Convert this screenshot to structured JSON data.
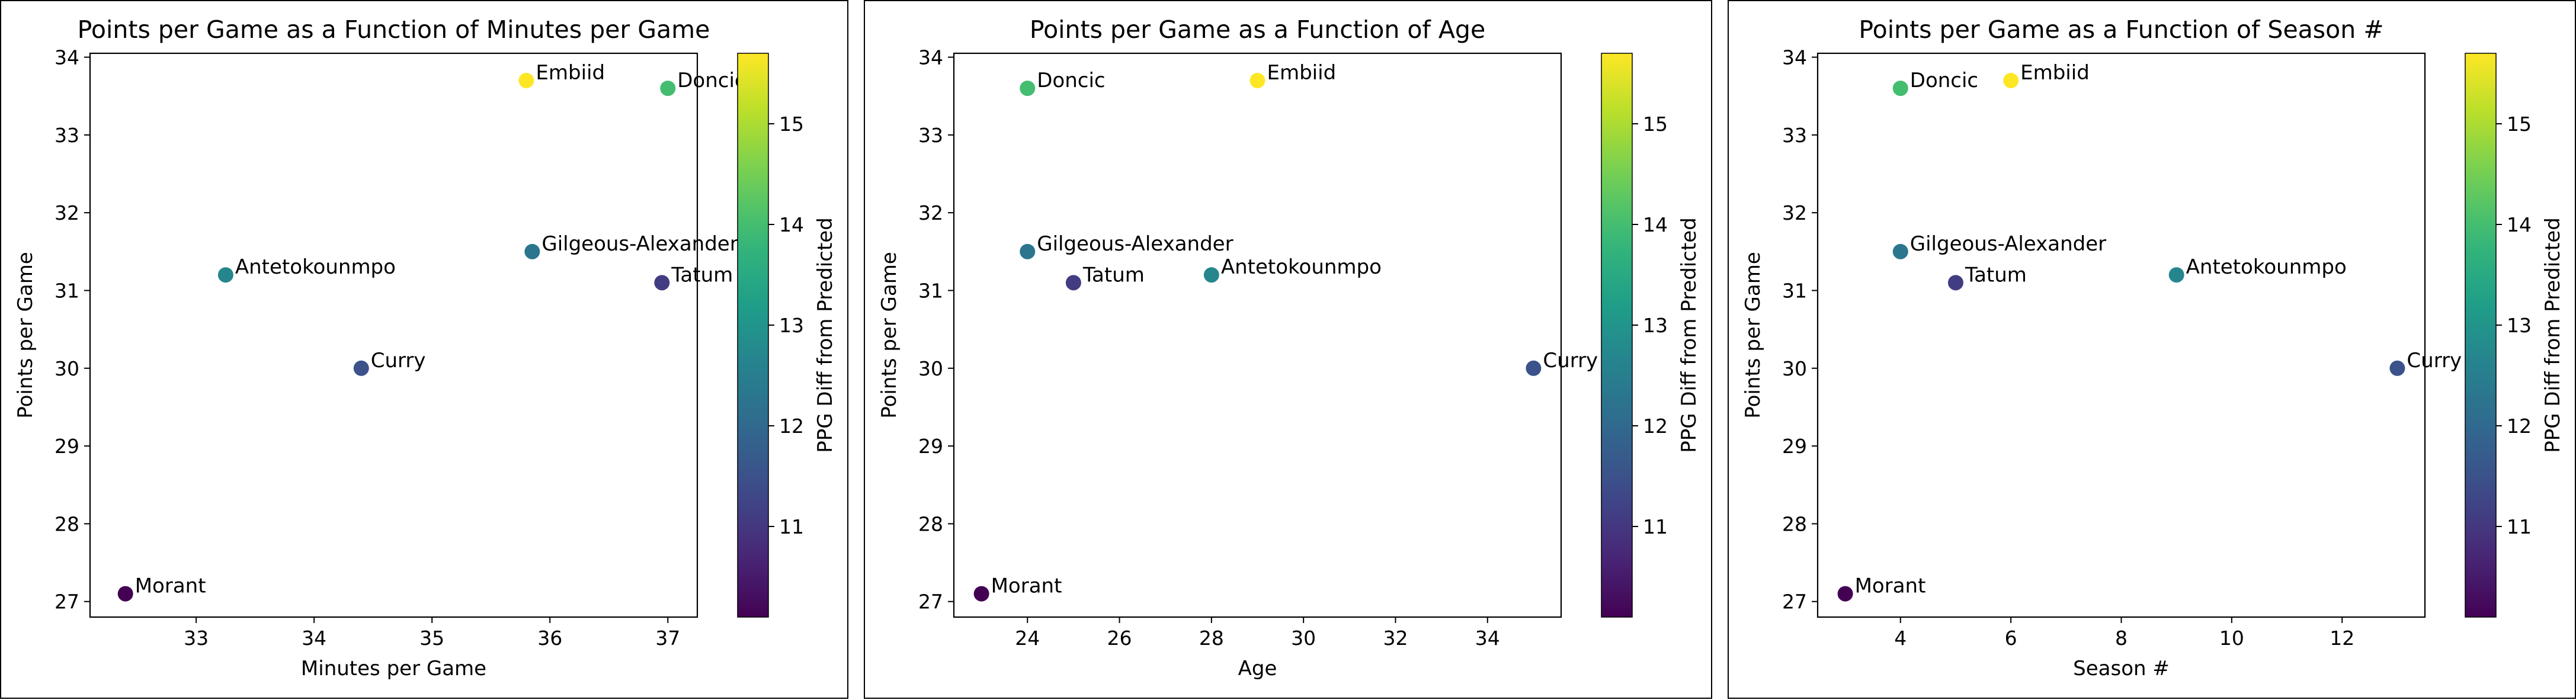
{
  "colorbar_label": "PPG Diff from Predicted",
  "colormap": [
    "#440154",
    "#482878",
    "#3e4a89",
    "#31688e",
    "#26828e",
    "#1f9e89",
    "#35b779",
    "#6ece58",
    "#b5de2b",
    "#fde725"
  ],
  "cbar_range": [
    10.1,
    15.7
  ],
  "cbar_ticks": [
    11,
    12,
    13,
    14,
    15
  ],
  "chart_data": [
    {
      "type": "scatter",
      "title": "Points per Game as a Function of Minutes per Game",
      "xlabel": "Minutes per Game",
      "ylabel": "Points per Game",
      "xlim": [
        32.1,
        37.25
      ],
      "ylim": [
        26.8,
        34.05
      ],
      "xticks": [
        33,
        34,
        35,
        36,
        37
      ],
      "yticks": [
        27,
        28,
        29,
        30,
        31,
        32,
        33,
        34
      ],
      "points": [
        {
          "label": "Embiid",
          "x": 35.8,
          "y": 33.7,
          "c": 15.7
        },
        {
          "label": "Doncic",
          "x": 37.0,
          "y": 33.6,
          "c": 14.0
        },
        {
          "label": "Gilgeous-Alexander",
          "x": 35.85,
          "y": 31.5,
          "c": 12.3
        },
        {
          "label": "Antetokounmpo",
          "x": 33.25,
          "y": 31.2,
          "c": 12.7
        },
        {
          "label": "Tatum",
          "x": 36.95,
          "y": 31.1,
          "c": 11.1
        },
        {
          "label": "Curry",
          "x": 34.4,
          "y": 30.0,
          "c": 11.5
        },
        {
          "label": "Morant",
          "x": 32.4,
          "y": 27.1,
          "c": 10.1
        }
      ]
    },
    {
      "type": "scatter",
      "title": "Points per Game as a Function of Age",
      "xlabel": "Age",
      "ylabel": "Points per Game",
      "xlim": [
        22.4,
        35.6
      ],
      "ylim": [
        26.8,
        34.05
      ],
      "xticks": [
        24,
        26,
        28,
        30,
        32,
        34
      ],
      "yticks": [
        27,
        28,
        29,
        30,
        31,
        32,
        33,
        34
      ],
      "points": [
        {
          "label": "Embiid",
          "x": 29,
          "y": 33.7,
          "c": 15.7
        },
        {
          "label": "Doncic",
          "x": 24,
          "y": 33.6,
          "c": 14.0
        },
        {
          "label": "Gilgeous-Alexander",
          "x": 24,
          "y": 31.5,
          "c": 12.3
        },
        {
          "label": "Antetokounmpo",
          "x": 28,
          "y": 31.2,
          "c": 12.7
        },
        {
          "label": "Tatum",
          "x": 25,
          "y": 31.1,
          "c": 11.1
        },
        {
          "label": "Curry",
          "x": 35,
          "y": 30.0,
          "c": 11.5
        },
        {
          "label": "Morant",
          "x": 23,
          "y": 27.1,
          "c": 10.1
        }
      ]
    },
    {
      "type": "scatter",
      "title": "Points per Game as a Function of Season #",
      "xlabel": "Season #",
      "ylabel": "Points per Game",
      "xlim": [
        2.5,
        13.5
      ],
      "ylim": [
        26.8,
        34.05
      ],
      "xticks": [
        4,
        6,
        8,
        10,
        12
      ],
      "yticks": [
        27,
        28,
        29,
        30,
        31,
        32,
        33,
        34
      ],
      "points": [
        {
          "label": "Embiid",
          "x": 6,
          "y": 33.7,
          "c": 15.7
        },
        {
          "label": "Doncic",
          "x": 4,
          "y": 33.6,
          "c": 14.0
        },
        {
          "label": "Gilgeous-Alexander",
          "x": 4,
          "y": 31.5,
          "c": 12.3
        },
        {
          "label": "Antetokounmpo",
          "x": 9,
          "y": 31.2,
          "c": 12.7
        },
        {
          "label": "Tatum",
          "x": 5,
          "y": 31.1,
          "c": 11.1
        },
        {
          "label": "Curry",
          "x": 13,
          "y": 30.0,
          "c": 11.5
        },
        {
          "label": "Morant",
          "x": 3,
          "y": 27.1,
          "c": 10.1
        }
      ]
    }
  ]
}
